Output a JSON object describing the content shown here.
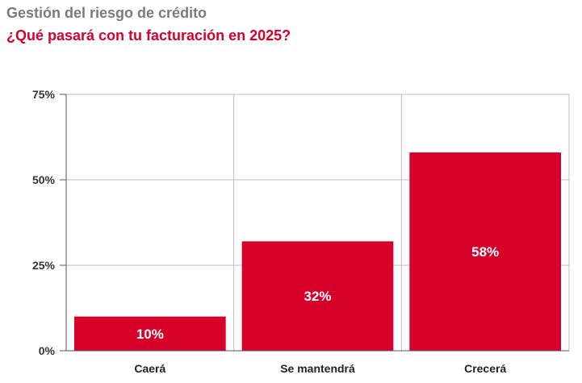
{
  "header": {
    "supertitle": "Gestión del riesgo de crédito",
    "title": "¿Qué pasará con tu facturación en 2025?"
  },
  "colors": {
    "bar": "#d6002a",
    "title": "#d6002a",
    "supertitle": "#7a7a7a",
    "grid": "#bdbdbd",
    "axis": "#555555"
  },
  "chart_data": {
    "type": "bar",
    "categories": [
      "Caerá",
      "Se mantendrá",
      "Crecerá"
    ],
    "values": [
      10,
      32,
      58
    ],
    "data_labels": [
      "10%",
      "32%",
      "58%"
    ],
    "ylim": [
      0,
      75
    ],
    "yticks": [
      0,
      25,
      50,
      75
    ],
    "ytick_labels": [
      "0%",
      "25%",
      "50%",
      "75%"
    ],
    "grid": true,
    "title": "¿Qué pasará con tu facturación en 2025?",
    "xlabel": "",
    "ylabel": ""
  }
}
